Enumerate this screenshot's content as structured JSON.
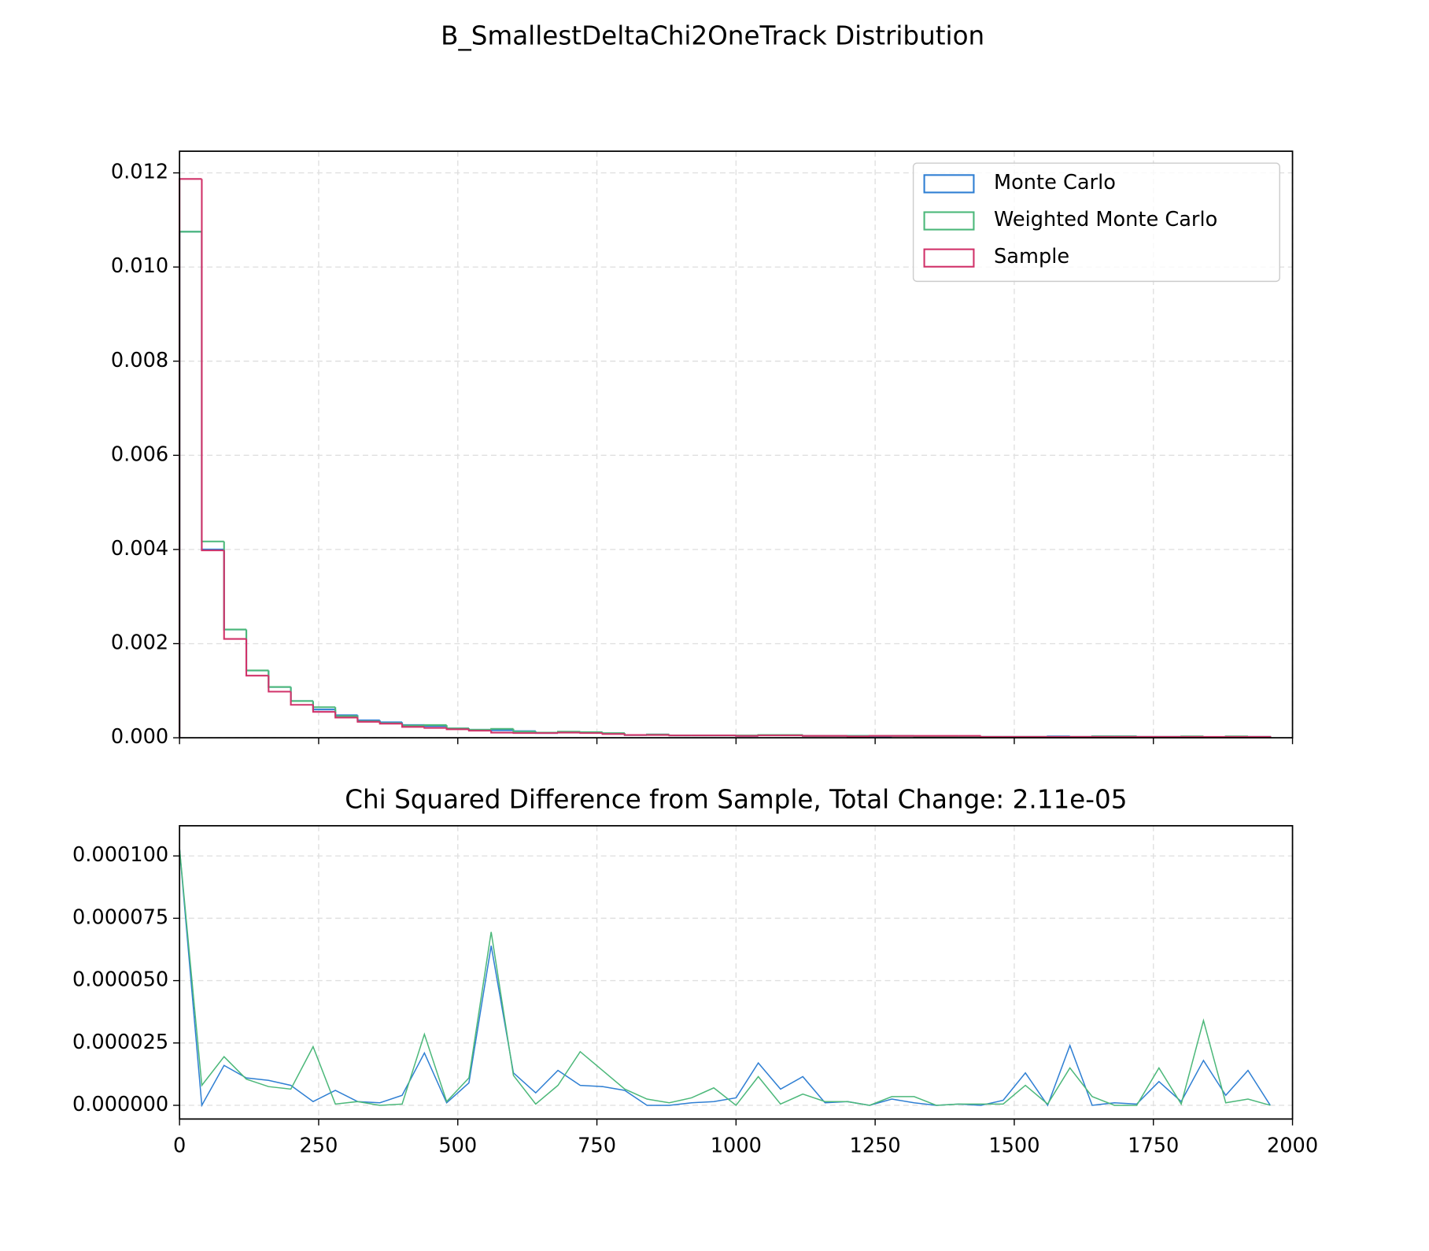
{
  "title": "B_SmallestDeltaChi2OneTrack Distribution",
  "chart_data": [
    {
      "type": "histogram",
      "bins": [
        0,
        40,
        80,
        120,
        160,
        200,
        240,
        280,
        320,
        360,
        400,
        440,
        480,
        520,
        560,
        600,
        640,
        680,
        720,
        760,
        800,
        840,
        880,
        920,
        960,
        1000,
        1040,
        1080,
        1120,
        1160,
        1200,
        1240,
        1280,
        1320,
        1360,
        1400,
        1440,
        1480,
        1520,
        1560,
        1600,
        1640,
        1680,
        1720,
        1760,
        1800,
        1840,
        1880,
        1920,
        1960
      ],
      "series": [
        {
          "name": "Monte Carlo",
          "color": "#2f7fd3",
          "values": [
            0.01075,
            0.004,
            0.0023,
            0.00143,
            0.00108,
            0.00078,
            0.0006,
            0.00048,
            0.00037,
            0.00033,
            0.00027,
            0.00025,
            0.0002,
            0.00017,
            0.00016,
            0.00014,
            0.0001,
            0.00012,
            0.00011,
            9e-05,
            6e-05,
            7e-05,
            5e-05,
            5e-05,
            5e-05,
            4e-05,
            6e-05,
            6e-05,
            4e-05,
            4e-05,
            4e-05,
            3e-05,
            4e-05,
            3e-05,
            3e-05,
            3e-05,
            2e-05,
            2e-05,
            2e-05,
            3e-05,
            2e-05,
            3e-05,
            3e-05,
            2e-05,
            2e-05,
            2e-05,
            1e-05,
            2e-05,
            2e-05
          ]
        },
        {
          "name": "Weighted Monte Carlo",
          "color": "#4cb87a",
          "values": [
            0.01075,
            0.00417,
            0.0023,
            0.00143,
            0.00108,
            0.00078,
            0.00065,
            0.00046,
            0.00035,
            0.00031,
            0.00026,
            0.00027,
            0.0002,
            0.00017,
            0.00019,
            0.00013,
            0.00011,
            0.00013,
            0.00012,
            0.0001,
            6e-05,
            7e-05,
            5e-05,
            5e-05,
            5e-05,
            5e-05,
            6e-05,
            6e-05,
            4e-05,
            4e-05,
            4e-05,
            4e-05,
            4e-05,
            3e-05,
            3e-05,
            3e-05,
            2e-05,
            2e-05,
            2e-05,
            2e-05,
            2e-05,
            3e-05,
            3e-05,
            2e-05,
            2e-05,
            3e-05,
            1e-05,
            3e-05,
            2e-05
          ]
        },
        {
          "name": "Sample",
          "color": "#d1336a",
          "values": [
            0.01187,
            0.00398,
            0.0021,
            0.00132,
            0.00098,
            0.0007,
            0.00055,
            0.00043,
            0.00034,
            0.0003,
            0.00023,
            0.00021,
            0.00018,
            0.00015,
            0.00011,
            0.0001,
            0.0001,
            0.00011,
            0.0001,
            8e-05,
            6e-05,
            6e-05,
            5e-05,
            5e-05,
            5e-05,
            4e-05,
            5e-05,
            5e-05,
            4e-05,
            4e-05,
            3e-05,
            4e-05,
            4e-05,
            4e-05,
            4e-05,
            4e-05,
            2e-05,
            2e-05,
            2e-05,
            2e-05,
            2e-05,
            2e-05,
            2e-05,
            2e-05,
            2e-05,
            2e-05,
            2e-05,
            2e-05,
            2e-05
          ]
        }
      ],
      "ylim": [
        0,
        0.01246
      ],
      "yticks": [
        {
          "value": 0,
          "label": "0.000"
        },
        {
          "value": 0.002,
          "label": "0.002"
        },
        {
          "value": 0.004,
          "label": "0.004"
        },
        {
          "value": 0.006,
          "label": "0.006"
        },
        {
          "value": 0.008,
          "label": "0.008"
        },
        {
          "value": 0.01,
          "label": "0.010"
        },
        {
          "value": 0.012,
          "label": "0.012"
        }
      ],
      "grid": true,
      "legend": "upper right"
    },
    {
      "type": "line",
      "title": "Chi Squared Difference from Sample, Total Change: 2.11e-05",
      "x": [
        0,
        40,
        80,
        120,
        160,
        200,
        240,
        280,
        320,
        360,
        400,
        440,
        480,
        520,
        560,
        600,
        640,
        680,
        720,
        760,
        800,
        840,
        880,
        920,
        960,
        1000,
        1040,
        1080,
        1120,
        1160,
        1200,
        1240,
        1280,
        1320,
        1360,
        1400,
        1440,
        1480,
        1520,
        1560,
        1600,
        1640,
        1680,
        1720,
        1760,
        1800,
        1840,
        1880,
        1920,
        1960
      ],
      "series": [
        {
          "name": "Monte Carlo",
          "color": "#2f7fd3",
          "values": [
            0.000103,
            0,
            1.6e-05,
            1.1e-05,
            1e-05,
            8e-06,
            1.5e-06,
            6e-06,
            1.5e-06,
            1e-06,
            4e-06,
            2.1e-05,
            1e-06,
            9e-06,
            6.4e-05,
            1.3e-05,
            5e-06,
            1.4e-05,
            8e-06,
            7.5e-06,
            6e-06,
            0,
            0,
            1e-06,
            1.5e-06,
            3e-06,
            1.7e-05,
            6.5e-06,
            1.15e-05,
            1e-06,
            1.5e-06,
            0,
            2.5e-06,
            1e-06,
            0,
            5e-07,
            0,
            2e-06,
            1.3e-05,
            0,
            2.4e-05,
            0,
            1e-06,
            5e-07,
            9.5e-06,
            1.5e-06,
            1.8e-05,
            4e-06,
            1.4e-05,
            0
          ]
        },
        {
          "name": "Weighted Monte Carlo",
          "color": "#4cb87a",
          "values": [
            0.000103,
            8e-06,
            1.95e-05,
            1.05e-05,
            7.5e-06,
            6.5e-06,
            2.35e-05,
            5e-07,
            1.5e-06,
            0,
            5e-07,
            2.85e-05,
            1.5e-06,
            1.1e-05,
            6.95e-05,
            1.2e-05,
            5e-07,
            8e-06,
            2.15e-05,
            1.4e-05,
            6.5e-06,
            2.5e-06,
            1e-06,
            3e-06,
            7e-06,
            0,
            1.15e-05,
            5e-07,
            4.5e-06,
            1.5e-06,
            1.5e-06,
            0,
            3.5e-06,
            3.5e-06,
            0,
            5e-07,
            5e-07,
            5e-07,
            8e-06,
            5e-07,
            1.5e-05,
            3.5e-06,
            0,
            0,
            1.5e-05,
            5e-07,
            3.4e-05,
            1e-06,
            2.5e-06,
            0
          ]
        }
      ],
      "xlim": [
        0,
        2000
      ],
      "xticks": [
        0,
        250,
        500,
        750,
        1000,
        1250,
        1500,
        1750,
        2000
      ],
      "ylim": [
        -5.5e-06,
        0.0001121
      ],
      "yticks": [
        {
          "value": 0,
          "label": "0.000000"
        },
        {
          "value": 2.5e-05,
          "label": "0.000025"
        },
        {
          "value": 5e-05,
          "label": "0.000050"
        },
        {
          "value": 7.5e-05,
          "label": "0.000075"
        },
        {
          "value": 0.0001,
          "label": "0.000100"
        }
      ],
      "grid": true
    }
  ]
}
